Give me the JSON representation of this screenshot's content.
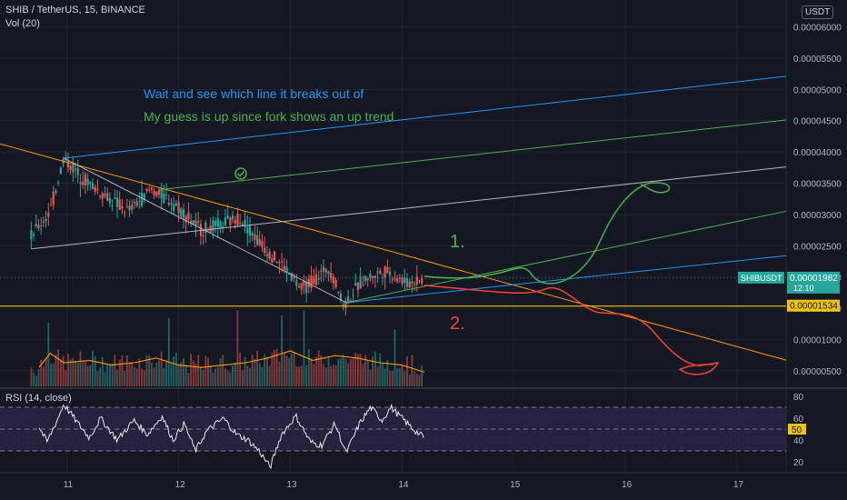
{
  "header": {
    "symbol_line": "SHIB / TetherUS, 15, BINANCE",
    "vol_label": "Vol (20)",
    "rsi_label": "RSI (14, close)",
    "currency": "USDT"
  },
  "annotations": {
    "line1": "Wait and see which line it breaks out of",
    "line2": "My guess is up since fork shows an up trend",
    "mark1": "1.",
    "mark2": "2."
  },
  "price_label": {
    "name": "SHIBUSDT",
    "value": "0.00001982",
    "countdown": "12:10"
  },
  "support_label": "0.00001534",
  "colors": {
    "bg": "#131722",
    "up": "#26a69a",
    "down": "#ef5350",
    "blue": "#2196f3",
    "green": "#4caf50",
    "orange": "#ff9800",
    "yellow": "#f0c30f",
    "red": "#f44336",
    "gray": "#b2b5be"
  },
  "chart_data": {
    "type": "candlestick",
    "price_axis": {
      "ticks": [
        "0.00006000",
        "0.00005500",
        "0.00005000",
        "0.00004500",
        "0.00004000",
        "0.00003500",
        "0.00003000",
        "0.00002500",
        "0.00002000",
        "0.00001500",
        "0.00001000",
        "0.00000500"
      ],
      "ylim": [
        2.5e-06,
        6.43e-05
      ]
    },
    "x_axis": {
      "ticks": [
        "11",
        "12",
        "13",
        "14",
        "15",
        "16",
        "17"
      ],
      "xlim": [
        10.4,
        17.44
      ]
    },
    "rsi_axis": {
      "ticks": [
        "80",
        "60",
        "50",
        "40",
        "20"
      ],
      "band": [
        30,
        70
      ],
      "ylim": [
        10,
        85
      ]
    },
    "current_price": 1.982e-05,
    "support": 1.534e-05,
    "price_path": [
      [
        10.68,
        2.65e-05
      ],
      [
        10.85,
        3.05e-05
      ],
      [
        10.97,
        3.9e-05
      ],
      [
        11.1,
        3.65e-05
      ],
      [
        11.3,
        3.35e-05
      ],
      [
        11.55,
        3.05e-05
      ],
      [
        11.75,
        3.4e-05
      ],
      [
        11.95,
        3.2e-05
      ],
      [
        12.2,
        2.75e-05
      ],
      [
        12.35,
        2.82e-05
      ],
      [
        12.55,
        2.95e-05
      ],
      [
        12.75,
        2.5e-05
      ],
      [
        12.95,
        2.15e-05
      ],
      [
        13.1,
        1.8e-05
      ],
      [
        13.35,
        2.15e-05
      ],
      [
        13.48,
        1.55e-05
      ],
      [
        13.65,
        1.95e-05
      ],
      [
        13.85,
        2.1e-05
      ],
      [
        14.05,
        1.9e-05
      ],
      [
        14.2,
        1.98e-05
      ]
    ],
    "rsi_path": [
      [
        10.75,
        52
      ],
      [
        10.82,
        38
      ],
      [
        10.92,
        60
      ],
      [
        10.97,
        73
      ],
      [
        11.1,
        55
      ],
      [
        11.2,
        42
      ],
      [
        11.3,
        60
      ],
      [
        11.45,
        40
      ],
      [
        11.6,
        58
      ],
      [
        11.72,
        45
      ],
      [
        11.85,
        62
      ],
      [
        11.95,
        40
      ],
      [
        12.05,
        55
      ],
      [
        12.15,
        30
      ],
      [
        12.25,
        48
      ],
      [
        12.4,
        60
      ],
      [
        12.52,
        45
      ],
      [
        12.62,
        40
      ],
      [
        12.72,
        30
      ],
      [
        12.82,
        15
      ],
      [
        12.92,
        45
      ],
      [
        13.05,
        62
      ],
      [
        13.18,
        38
      ],
      [
        13.28,
        35
      ],
      [
        13.4,
        55
      ],
      [
        13.5,
        28
      ],
      [
        13.62,
        55
      ],
      [
        13.72,
        70
      ],
      [
        13.82,
        58
      ],
      [
        13.9,
        70
      ],
      [
        14.0,
        60
      ],
      [
        14.1,
        50
      ],
      [
        14.2,
        42
      ]
    ],
    "volume_path": [
      [
        10.75,
        8
      ],
      [
        10.85,
        14
      ],
      [
        10.97,
        10
      ],
      [
        11.2,
        11
      ],
      [
        11.4,
        9
      ],
      [
        11.6,
        10
      ],
      [
        11.8,
        12
      ],
      [
        12.0,
        9
      ],
      [
        12.2,
        8
      ],
      [
        12.4,
        9
      ],
      [
        12.6,
        10
      ],
      [
        12.8,
        12
      ],
      [
        13.0,
        15
      ],
      [
        13.2,
        11
      ],
      [
        13.4,
        13
      ],
      [
        13.6,
        12
      ],
      [
        13.8,
        10
      ],
      [
        14.0,
        9
      ],
      [
        14.2,
        6
      ]
    ],
    "lines": [
      {
        "color": "orange",
        "points": [
          [
            10.4,
            4.13e-05
          ],
          [
            17.44,
            6.7e-06
          ]
        ]
      },
      {
        "color": "blue",
        "points": [
          [
            10.97,
            3.9e-05
          ],
          [
            17.44,
            5.21e-05
          ]
        ]
      },
      {
        "color": "green",
        "points": [
          [
            11.85,
            3.4e-05
          ],
          [
            17.44,
            4.51e-05
          ]
        ]
      },
      {
        "color": "gray",
        "points": [
          [
            10.68,
            2.45e-05
          ],
          [
            17.44,
            3.76e-05
          ]
        ]
      },
      {
        "color": "gray",
        "points": [
          [
            10.97,
            3.9e-05
          ],
          [
            13.5,
            1.59e-05
          ]
        ]
      },
      {
        "color": "green",
        "points": [
          [
            13.5,
            1.59e-05
          ],
          [
            17.44,
            3.05e-05
          ]
        ]
      },
      {
        "color": "blue",
        "points": [
          [
            13.5,
            1.59e-05
          ],
          [
            17.44,
            2.34e-05
          ]
        ]
      }
    ]
  }
}
